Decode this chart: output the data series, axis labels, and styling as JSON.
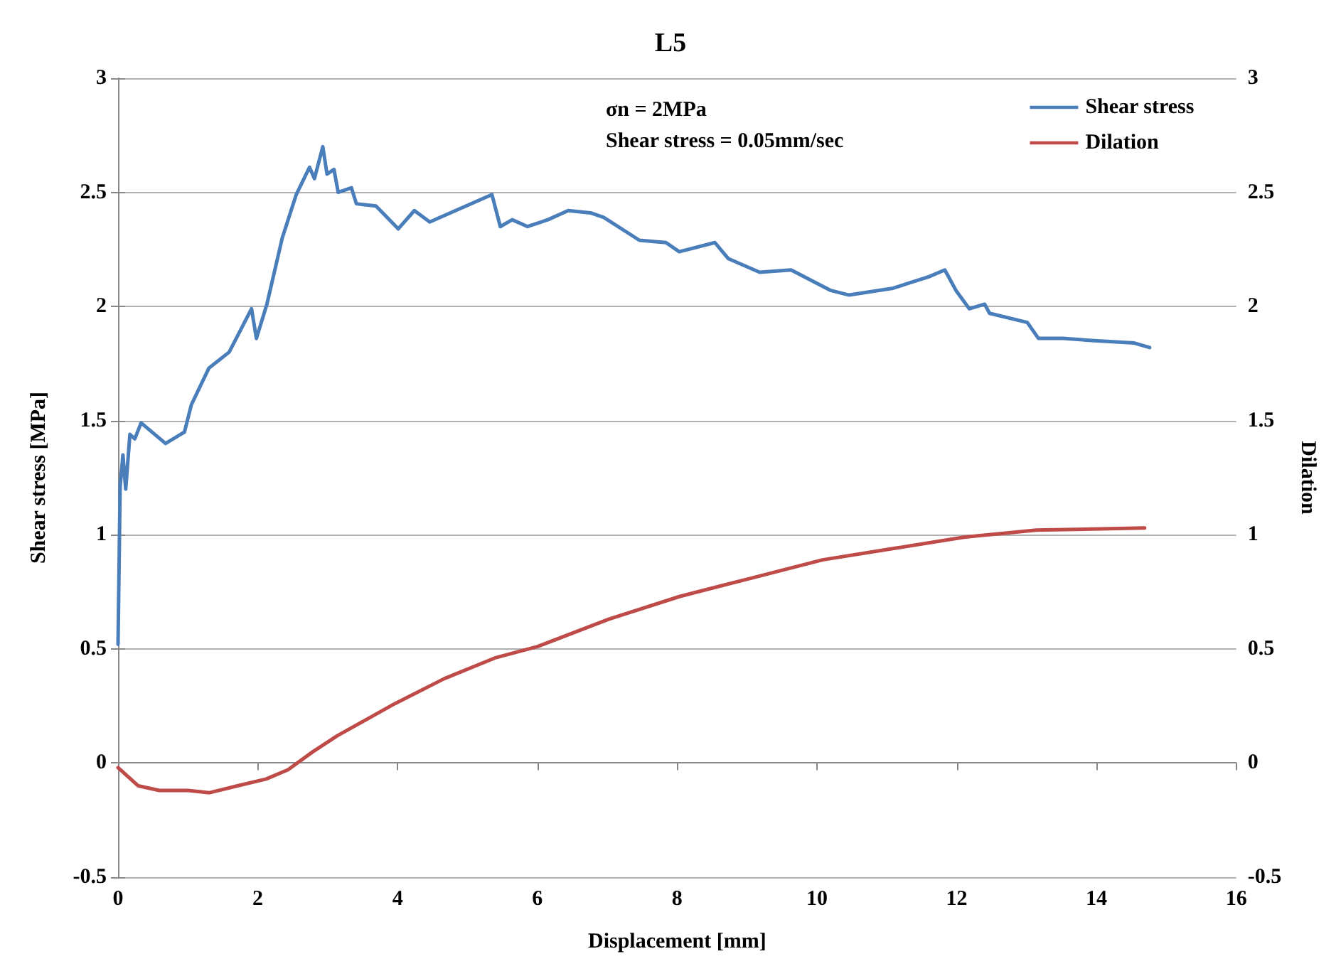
{
  "chart_data": {
    "type": "line",
    "title": "L5",
    "xlabel": "Displacement [mm]",
    "ylabel": "Shear stress [MPa]",
    "y2label": "Dilation",
    "annotations": [
      "σn = 2MPa",
      "Shear stress = 0.05mm/sec"
    ],
    "xlim": [
      0,
      16
    ],
    "xticks": [
      0,
      2,
      4,
      6,
      8,
      10,
      12,
      14,
      16
    ],
    "ylim": [
      -0.5,
      3
    ],
    "yticks": [
      -0.5,
      0,
      0.5,
      1,
      1.5,
      2,
      2.5,
      3
    ],
    "y2lim": [
      -0.5,
      3
    ],
    "y2ticks": [
      -0.5,
      0,
      0.5,
      1,
      1.5,
      2,
      2.5,
      3
    ],
    "grid": "y",
    "legend": "top right",
    "marker": "none",
    "line_style": "solid",
    "series": [
      {
        "name": "Shear stress",
        "color": "#4a7ebb",
        "x": [
          0,
          0.03,
          0.07,
          0.11,
          0.17,
          0.24,
          0.33,
          0.68,
          0.95,
          1.05,
          1.3,
          1.59,
          1.91,
          1.98,
          2.13,
          2.35,
          2.55,
          2.74,
          2.81,
          2.93,
          2.99,
          3.09,
          3.15,
          3.34,
          3.41,
          3.69,
          4.01,
          4.24,
          4.46,
          5.35,
          5.47,
          5.64,
          5.86,
          6.15,
          6.44,
          6.76,
          6.95,
          7.46,
          7.84,
          8.03,
          8.54,
          8.73,
          9.18,
          9.63,
          10.2,
          10.46,
          11.09,
          11.6,
          11.83,
          11.99,
          12.18,
          12.4,
          12.47,
          13.01,
          13.17,
          13.52,
          13.97,
          14.54,
          14.76
        ],
        "values": [
          0.52,
          1.21,
          1.35,
          1.2,
          1.44,
          1.42,
          1.49,
          1.4,
          1.45,
          1.57,
          1.73,
          1.8,
          1.99,
          1.86,
          2.01,
          2.3,
          2.49,
          2.61,
          2.56,
          2.7,
          2.58,
          2.6,
          2.5,
          2.52,
          2.45,
          2.44,
          2.34,
          2.42,
          2.37,
          2.49,
          2.35,
          2.38,
          2.35,
          2.38,
          2.42,
          2.41,
          2.39,
          2.29,
          2.28,
          2.24,
          2.28,
          2.21,
          2.15,
          2.16,
          2.07,
          2.05,
          2.08,
          2.13,
          2.16,
          2.07,
          1.99,
          2.01,
          1.97,
          1.93,
          1.86,
          1.86,
          1.85,
          1.84,
          1.82
        ]
      },
      {
        "name": "Dilation",
        "color": "#be4b48",
        "x": [
          0,
          0.29,
          0.59,
          1,
          1.31,
          1.71,
          2.12,
          2.43,
          2.79,
          3.14,
          3.96,
          4.67,
          5.39,
          6,
          7.02,
          8.04,
          9.06,
          10.08,
          11.1,
          12.12,
          13.14,
          14.69
        ],
        "values": [
          -0.02,
          -0.1,
          -0.12,
          -0.12,
          -0.13,
          -0.1,
          -0.07,
          -0.03,
          0.05,
          0.12,
          0.26,
          0.37,
          0.46,
          0.51,
          0.63,
          0.73,
          0.81,
          0.89,
          0.94,
          0.99,
          1.02,
          1.03
        ]
      }
    ]
  }
}
